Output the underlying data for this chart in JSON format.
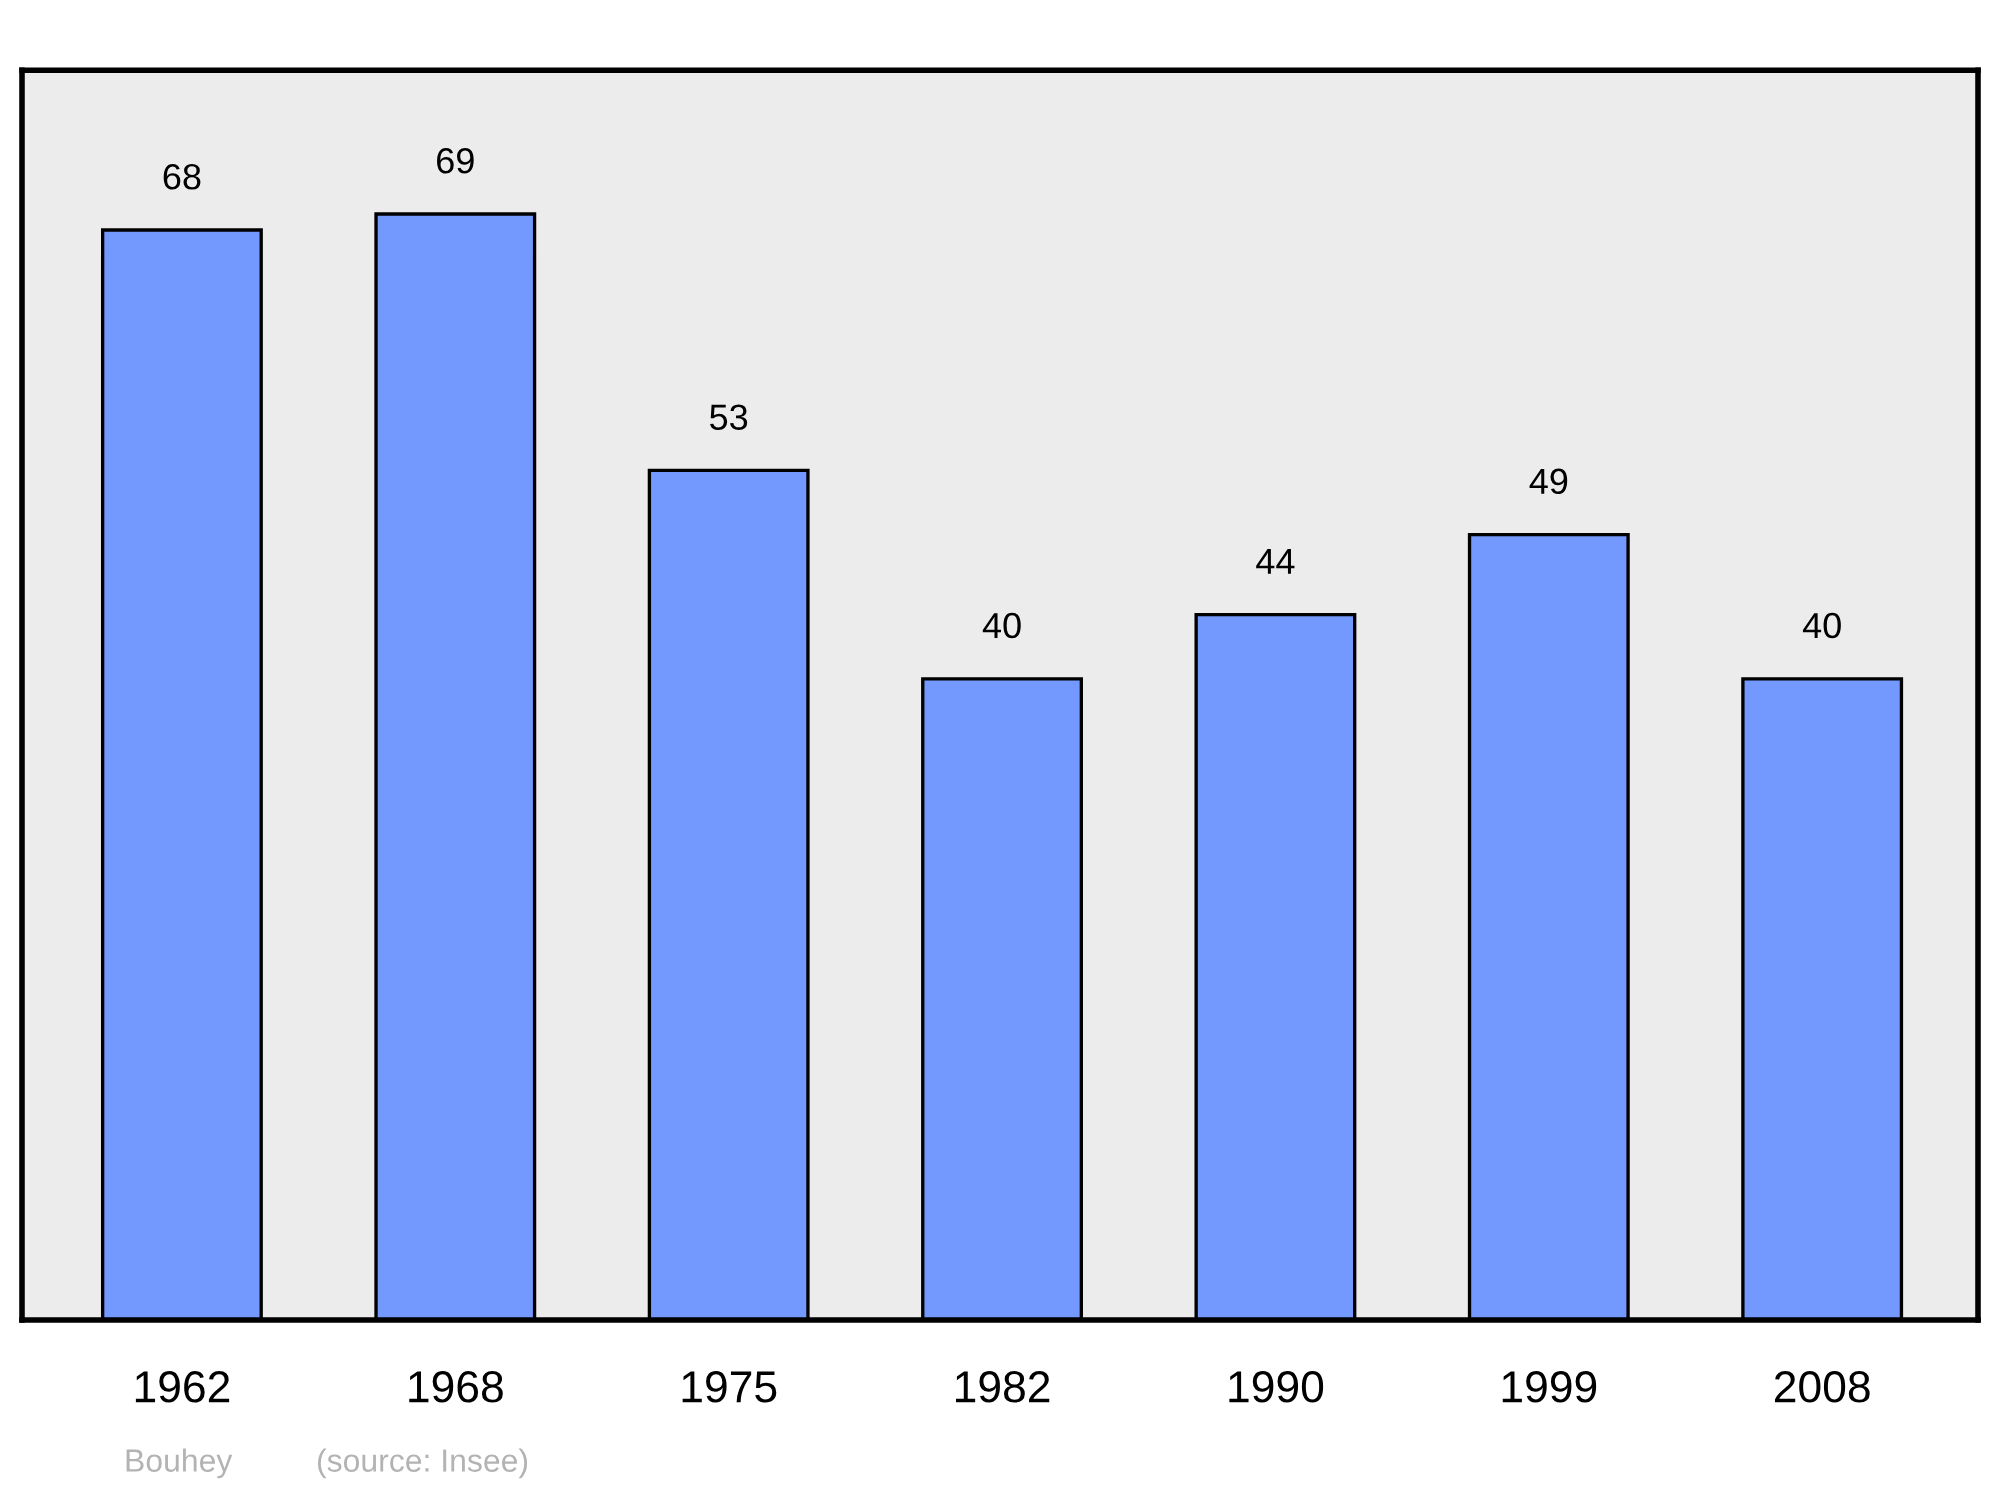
{
  "chart_data": {
    "type": "bar",
    "categories": [
      "1962",
      "1968",
      "1975",
      "1982",
      "1990",
      "1999",
      "2008"
    ],
    "values": [
      68,
      69,
      53,
      40,
      44,
      49,
      40
    ],
    "color": "#7399ff",
    "data_labels": true,
    "grid": false,
    "tick_labels": "x",
    "annotations": [
      "Bouhey",
      "(source: Insee)"
    ]
  }
}
